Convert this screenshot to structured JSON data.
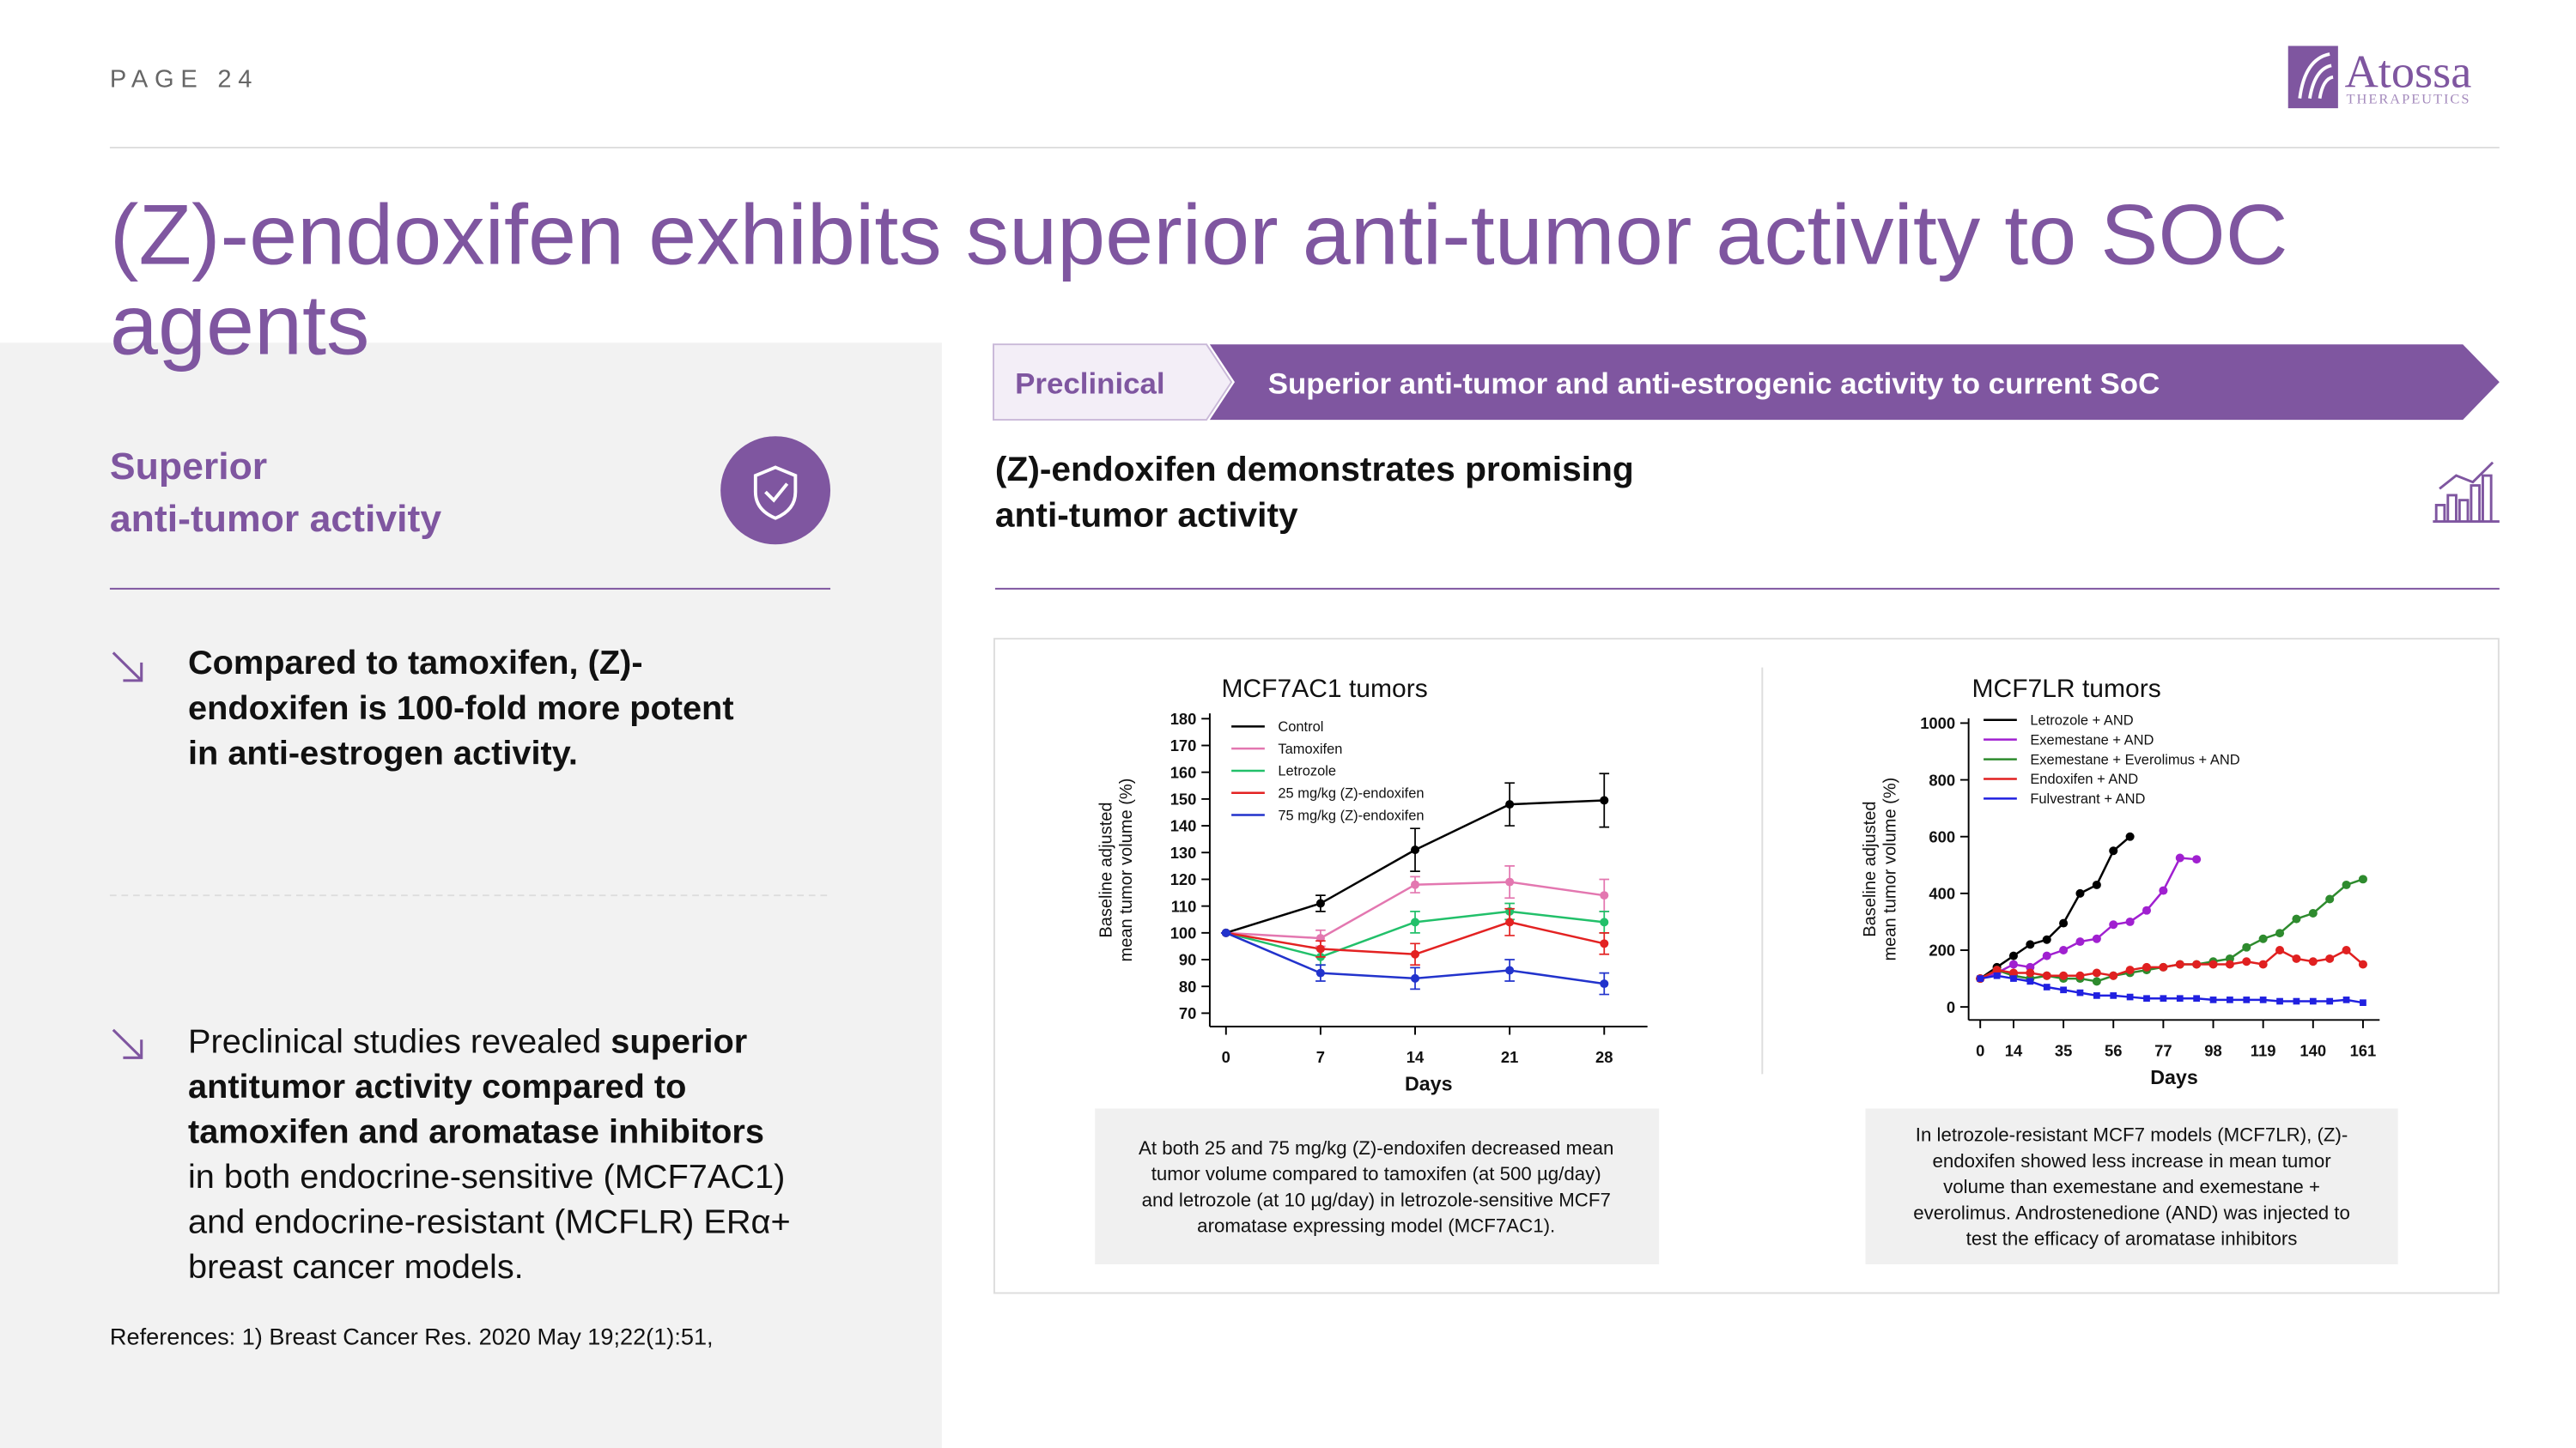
{
  "header": {
    "page": "PAGE 24",
    "logo": "Atossa",
    "logo_sub": "THERAPEUTICS"
  },
  "title": [
    "(Z)-endoxifen exhibits superior anti-tumor activity to SOC",
    "agents"
  ],
  "left": {
    "heading": [
      "Superior",
      "anti-tumor activity"
    ],
    "bullets": [
      [
        [
          {
            "text": "Compared to tamoxifen, (Z)-",
            "bold": true
          }
        ],
        [
          {
            "text": "endoxifen is 100-fold more potent",
            "bold": true
          }
        ],
        [
          {
            "text": "in anti-estrogen activity.",
            "bold": true
          }
        ]
      ],
      [
        [
          {
            "text": "Preclinical studies revealed ",
            "bold": false
          },
          {
            "text": "superior",
            "bold": true
          }
        ],
        [
          {
            "text": "antitumor activity compared to",
            "bold": true
          }
        ],
        [
          {
            "text": "tamoxifen and aromatase inhibitors",
            "bold": true
          }
        ],
        [
          {
            "text": "in both endocrine-sensitive (MCF7AC1)",
            "bold": false
          }
        ],
        [
          {
            "text": "and endocrine-resistant (MCFLR) ERα+",
            "bold": false
          }
        ],
        [
          {
            "text": "breast cancer models.",
            "bold": false
          }
        ]
      ]
    ],
    "references": "References:  1) Breast Cancer Res. 2020 May 19;22(1):51,"
  },
  "banner": {
    "tag": "Preclinical",
    "text": "Superior anti-tumor and anti-estrogenic activity to current SoC"
  },
  "subheading": [
    "(Z)-endoxifen demonstrates promising",
    "anti-tumor activity"
  ],
  "chart_data": [
    {
      "type": "line",
      "title": "MCF7AC1 tumors",
      "xlabel": "Days",
      "ylabel": [
        "Baseline adjusted",
        "mean tumor volume (%)"
      ],
      "x": [
        0,
        7,
        14,
        21,
        28
      ],
      "xlim": [
        -1.2,
        31.2
      ],
      "xticks": [
        0,
        7,
        14,
        21,
        28
      ],
      "ylim": [
        65,
        182
      ],
      "yticks": [
        70,
        80,
        90,
        100,
        110,
        120,
        130,
        140,
        150,
        160,
        170,
        180
      ],
      "series": [
        {
          "name": "Control",
          "color": "#000000",
          "values": [
            100,
            111,
            131,
            148,
            149.5
          ],
          "errors": [
            0,
            3,
            8,
            8,
            10
          ]
        },
        {
          "name": "Tamoxifen",
          "color": "#e377b0",
          "values": [
            100,
            98,
            118,
            119,
            114
          ],
          "errors": [
            0,
            3,
            3,
            6,
            6
          ]
        },
        {
          "name": "Letrozole",
          "color": "#22c06a",
          "values": [
            100,
            91,
            104,
            108,
            104
          ],
          "errors": [
            0,
            3,
            4,
            3,
            4
          ]
        },
        {
          "name": "25 mg/kg (Z)-endoxifen",
          "color": "#e32222",
          "values": [
            100,
            94,
            92,
            104,
            96
          ],
          "errors": [
            0,
            3,
            4,
            5,
            4
          ]
        },
        {
          "name": "75 mg/kg (Z)-endoxifen",
          "color": "#2233cc",
          "values": [
            100,
            85,
            83,
            86,
            81
          ],
          "errors": [
            0,
            3,
            4,
            4,
            4
          ]
        }
      ]
    },
    {
      "type": "line",
      "title": "MCF7LR tumors",
      "xlabel": "Days",
      "ylabel": [
        "Baseline adjusted",
        "mean tumor volume (%)"
      ],
      "x": [
        0,
        7,
        14,
        21,
        28,
        35,
        42,
        49,
        56,
        63,
        70,
        77,
        84,
        91,
        98,
        105,
        112,
        119,
        126,
        133,
        140,
        147,
        154,
        161
      ],
      "xlim": [
        -4.9,
        168
      ],
      "xticks": [
        0,
        14,
        35,
        56,
        77,
        98,
        119,
        140,
        161
      ],
      "ylim": [
        -46,
        1017
      ],
      "yticks": [
        0,
        200,
        400,
        600,
        800,
        1000
      ],
      "series": [
        {
          "name": "Letrozole + AND",
          "color": "#000000",
          "values": [
            100,
            140,
            180,
            220,
            237,
            295,
            400,
            430,
            550,
            600,
            null,
            null,
            null,
            null,
            null,
            null,
            null,
            null,
            null,
            null,
            null,
            null,
            null,
            null
          ]
        },
        {
          "name": "Exemestane + AND",
          "color": "#a020d0",
          "values": [
            100,
            120,
            150,
            140,
            180,
            200,
            230,
            240,
            290,
            300,
            340,
            410,
            525,
            520,
            null,
            null,
            null,
            null,
            null,
            null,
            null,
            null,
            null,
            null
          ]
        },
        {
          "name": "Exemestane + Everolimus + AND",
          "color": "#2e8b2e",
          "values": [
            100,
            130,
            110,
            100,
            110,
            100,
            100,
            90,
            110,
            120,
            130,
            140,
            150,
            150,
            160,
            170,
            210,
            240,
            260,
            310,
            330,
            380,
            430,
            450
          ]
        },
        {
          "name": "Endoxifen + AND",
          "color": "#e02020",
          "values": [
            100,
            130,
            120,
            120,
            110,
            110,
            110,
            120,
            110,
            130,
            140,
            140,
            150,
            150,
            150,
            150,
            160,
            150,
            200,
            170,
            160,
            170,
            200,
            150
          ]
        },
        {
          "name": "Fulvestrant + AND",
          "color": "#2020e0",
          "marker": "square",
          "values": [
            100,
            110,
            100,
            90,
            70,
            60,
            50,
            40,
            40,
            35,
            30,
            30,
            30,
            30,
            25,
            25,
            25,
            25,
            20,
            20,
            20,
            20,
            25,
            15
          ]
        }
      ]
    }
  ],
  "captions": [
    [
      "At both 25 and 75 mg/kg (Z)-endoxifen decreased mean",
      "tumor volume compared to tamoxifen (at 500 µg/day)",
      "and letrozole (at 10 µg/day) in letrozole-sensitive MCF7",
      "aromatase expressing model (MCF7AC1)."
    ],
    [
      "In letrozole-resistant MCF7 models (MCF7LR), (Z)-",
      "endoxifen showed less increase in mean tumor",
      "volume than exemestane and exemestane +",
      "everolimus. Androstenedione (AND) was injected to",
      "test the efficacy of aromatase inhibitors"
    ]
  ]
}
